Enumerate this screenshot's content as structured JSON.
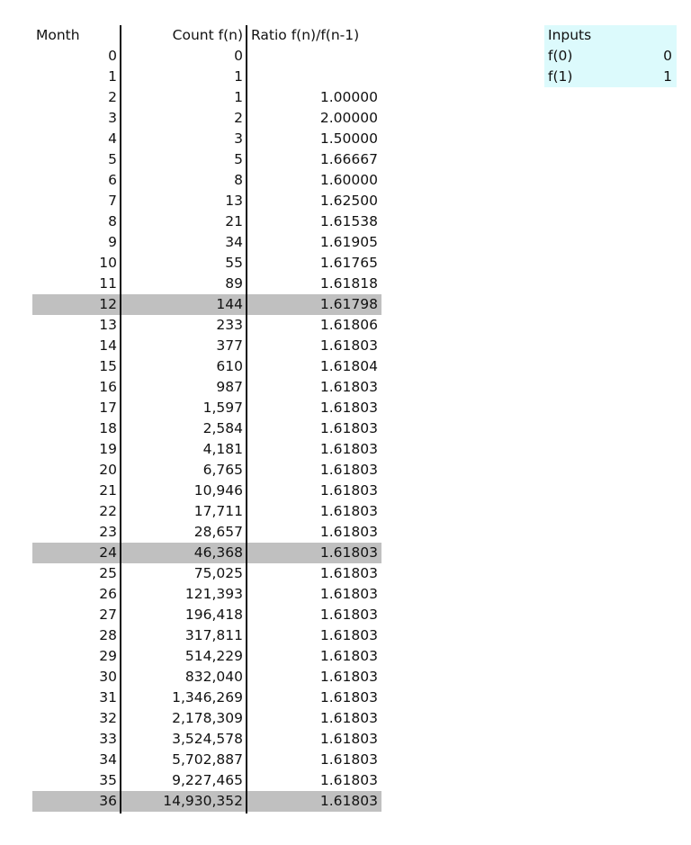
{
  "headers": {
    "month": "Month",
    "count": "Count f(n)",
    "ratio": "Ratio f(n)/f(n-1)"
  },
  "highlight_color": "#c0c0c0",
  "highlighted_months": [
    12,
    24,
    36
  ],
  "rows": [
    [
      "0",
      "0",
      ""
    ],
    [
      "1",
      "1",
      ""
    ],
    [
      "2",
      "1",
      "1.00000"
    ],
    [
      "3",
      "2",
      "2.00000"
    ],
    [
      "4",
      "3",
      "1.50000"
    ],
    [
      "5",
      "5",
      "1.66667"
    ],
    [
      "6",
      "8",
      "1.60000"
    ],
    [
      "7",
      "13",
      "1.62500"
    ],
    [
      "8",
      "21",
      "1.61538"
    ],
    [
      "9",
      "34",
      "1.61905"
    ],
    [
      "10",
      "55",
      "1.61765"
    ],
    [
      "11",
      "89",
      "1.61818"
    ],
    [
      "12",
      "144",
      "1.61798"
    ],
    [
      "13",
      "233",
      "1.61806"
    ],
    [
      "14",
      "377",
      "1.61803"
    ],
    [
      "15",
      "610",
      "1.61804"
    ],
    [
      "16",
      "987",
      "1.61803"
    ],
    [
      "17",
      "1,597",
      "1.61803"
    ],
    [
      "18",
      "2,584",
      "1.61803"
    ],
    [
      "19",
      "4,181",
      "1.61803"
    ],
    [
      "20",
      "6,765",
      "1.61803"
    ],
    [
      "21",
      "10,946",
      "1.61803"
    ],
    [
      "22",
      "17,711",
      "1.61803"
    ],
    [
      "23",
      "28,657",
      "1.61803"
    ],
    [
      "24",
      "46,368",
      "1.61803"
    ],
    [
      "25",
      "75,025",
      "1.61803"
    ],
    [
      "26",
      "121,393",
      "1.61803"
    ],
    [
      "27",
      "196,418",
      "1.61803"
    ],
    [
      "28",
      "317,811",
      "1.61803"
    ],
    [
      "29",
      "514,229",
      "1.61803"
    ],
    [
      "30",
      "832,040",
      "1.61803"
    ],
    [
      "31",
      "1,346,269",
      "1.61803"
    ],
    [
      "32",
      "2,178,309",
      "1.61803"
    ],
    [
      "33",
      "3,524,578",
      "1.61803"
    ],
    [
      "34",
      "5,702,887",
      "1.61803"
    ],
    [
      "35",
      "9,227,465",
      "1.61803"
    ],
    [
      "36",
      "14,930,352",
      "1.61803"
    ]
  ],
  "inputs": {
    "title": "Inputs",
    "background": "#dcfafc",
    "items": [
      {
        "label": "f(0)",
        "value": "0"
      },
      {
        "label": "f(1)",
        "value": "1"
      }
    ]
  }
}
